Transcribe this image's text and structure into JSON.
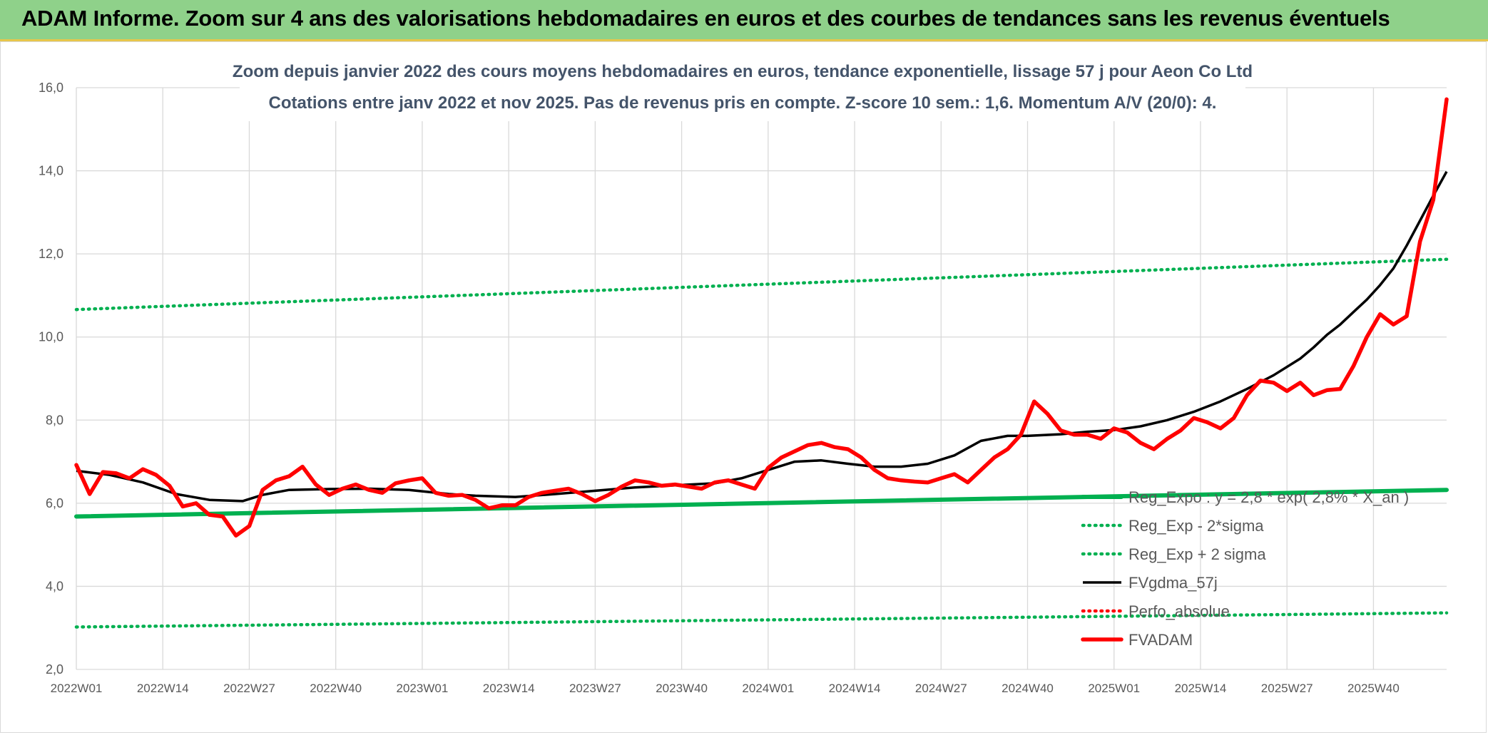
{
  "header": {
    "title": "ADAM Informe. Zoom sur 4 ans des valorisations hebdomadaires en euros et des courbes de tendances sans les revenus éventuels"
  },
  "chart_data": {
    "type": "line",
    "title": "Zoom depuis janvier 2022 des cours moyens hebdomadaires en euros, tendance exponentielle, lissage 57 j pour Aeon Co Ltd",
    "subtitle": "Cotations entre janv 2022 et nov 2025. Pas de revenus pris en compte. Z-score 10 sem.: 1,6. Momentum A/V (20/0): 4.",
    "xlabel": "",
    "ylabel": "",
    "ylim": [
      2,
      16
    ],
    "y_ticks": [
      "2,0",
      "4,0",
      "6,0",
      "8,0",
      "10,0",
      "12,0",
      "14,0",
      "16,0"
    ],
    "x_tick_labels": [
      "2022W01",
      "2022W14",
      "2022W27",
      "2022W40",
      "2023W01",
      "2023W14",
      "2023W27",
      "2023W40",
      "2024W01",
      "2024W14",
      "2024W27",
      "2024W40",
      "2025W01",
      "2025W14",
      "2025W27",
      "2025W40"
    ],
    "x_tick_index": [
      0,
      13,
      26,
      39,
      52,
      65,
      78,
      91,
      104,
      117,
      130,
      143,
      156,
      169,
      182,
      195
    ],
    "n_weeks": 207,
    "grid": true,
    "legend_position": "right",
    "series": [
      {
        "name": "Reg_Expo : y = 2,8 * exp( 2,8% * X_an )",
        "color": "#00b050",
        "style": "solid-thick",
        "x": [
          0,
          206
        ],
        "y": [
          5.68,
          6.32
        ]
      },
      {
        "name": "Reg_Exp - 2*sigma",
        "color": "#00b050",
        "style": "dotted",
        "x": [
          0,
          206
        ],
        "y": [
          3.02,
          3.36
        ]
      },
      {
        "name": "Reg_Exp + 2 sigma",
        "color": "#00b050",
        "style": "dotted",
        "x": [
          0,
          206
        ],
        "y": [
          10.66,
          11.87
        ]
      },
      {
        "name": "FVgdma_57j",
        "color": "#000000",
        "style": "solid",
        "x": [
          0,
          5,
          10,
          15,
          20,
          25,
          28,
          32,
          38,
          44,
          50,
          56,
          60,
          66,
          72,
          78,
          84,
          90,
          96,
          100,
          104,
          108,
          112,
          116,
          120,
          124,
          128,
          132,
          136,
          140,
          143,
          148,
          152,
          156,
          160,
          164,
          168,
          172,
          176,
          180,
          184,
          186,
          188,
          190,
          192,
          194,
          196,
          198,
          200,
          202,
          204,
          206
        ],
        "y": [
          6.78,
          6.68,
          6.5,
          6.22,
          6.08,
          6.05,
          6.2,
          6.32,
          6.34,
          6.35,
          6.32,
          6.22,
          6.18,
          6.15,
          6.22,
          6.3,
          6.38,
          6.43,
          6.48,
          6.6,
          6.8,
          7.0,
          7.03,
          6.95,
          6.88,
          6.88,
          6.95,
          7.15,
          7.5,
          7.62,
          7.62,
          7.66,
          7.72,
          7.76,
          7.85,
          8.0,
          8.2,
          8.45,
          8.75,
          9.08,
          9.48,
          9.75,
          10.05,
          10.3,
          10.6,
          10.9,
          11.25,
          11.65,
          12.2,
          12.8,
          13.4,
          13.98
        ]
      },
      {
        "name": "Perfo_absolue",
        "color": "#ff0000",
        "style": "dotted",
        "x": [],
        "y": []
      },
      {
        "name": "FVADAM",
        "color": "#ff0000",
        "style": "solid-thick",
        "x": [
          0,
          2,
          4,
          6,
          8,
          10,
          12,
          14,
          16,
          18,
          20,
          22,
          24,
          26,
          28,
          30,
          32,
          34,
          36,
          38,
          40,
          42,
          44,
          46,
          48,
          50,
          52,
          54,
          56,
          58,
          60,
          62,
          64,
          66,
          68,
          70,
          72,
          74,
          76,
          78,
          80,
          82,
          84,
          86,
          88,
          90,
          92,
          94,
          96,
          98,
          100,
          102,
          104,
          106,
          108,
          110,
          112,
          114,
          116,
          118,
          120,
          122,
          124,
          126,
          128,
          130,
          132,
          134,
          136,
          138,
          140,
          142,
          144,
          146,
          148,
          150,
          152,
          154,
          156,
          158,
          160,
          162,
          164,
          166,
          168,
          170,
          172,
          174,
          176,
          178,
          180,
          182,
          184,
          186,
          188,
          190,
          192,
          194,
          196,
          198,
          200,
          202,
          204,
          206
        ],
        "y": [
          6.92,
          6.22,
          6.75,
          6.72,
          6.6,
          6.82,
          6.68,
          6.42,
          5.92,
          6.0,
          5.72,
          5.68,
          5.22,
          5.45,
          6.32,
          6.55,
          6.65,
          6.88,
          6.45,
          6.2,
          6.35,
          6.45,
          6.32,
          6.25,
          6.48,
          6.55,
          6.6,
          6.25,
          6.18,
          6.2,
          6.08,
          5.88,
          5.95,
          5.95,
          6.15,
          6.25,
          6.3,
          6.35,
          6.22,
          6.05,
          6.2,
          6.4,
          6.55,
          6.5,
          6.42,
          6.45,
          6.4,
          6.35,
          6.5,
          6.55,
          6.45,
          6.35,
          6.85,
          7.1,
          7.25,
          7.4,
          7.45,
          7.35,
          7.3,
          7.1,
          6.8,
          6.6,
          6.55,
          6.52,
          6.5,
          6.6,
          6.7,
          6.5,
          6.8,
          7.1,
          7.3,
          7.65,
          8.45,
          8.15,
          7.75,
          7.65,
          7.65,
          7.55,
          7.8,
          7.7,
          7.45,
          7.3,
          7.55,
          7.75,
          8.05,
          7.95,
          7.8,
          8.05,
          8.6,
          8.95,
          8.9,
          8.7,
          8.9,
          8.6,
          8.72,
          8.75,
          9.3,
          10.0,
          10.55,
          10.3,
          10.5,
          12.3,
          13.3,
          15.72
        ]
      }
    ]
  }
}
